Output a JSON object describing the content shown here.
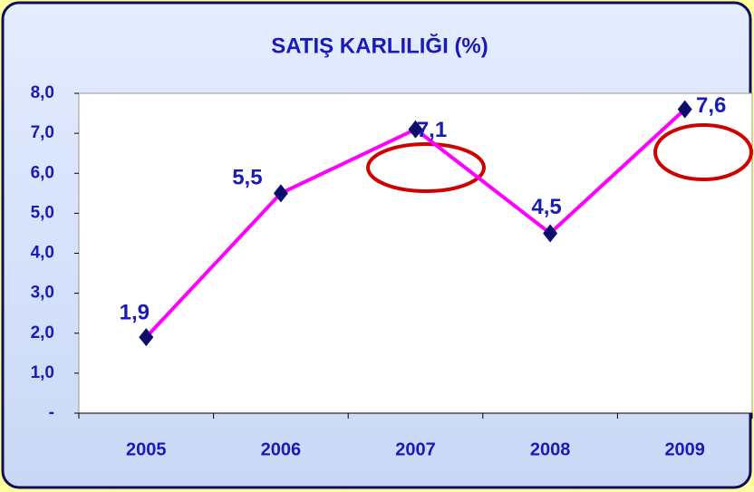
{
  "chart_data": {
    "type": "line",
    "title": "SATIŞ KARLILIĞI (%)",
    "categories": [
      "2005",
      "2006",
      "2007",
      "2008",
      "2009"
    ],
    "values": [
      1.9,
      5.5,
      7.1,
      4.5,
      7.6
    ],
    "value_labels": [
      "1,9",
      "5,5",
      "7,1",
      "4,5",
      "7,6"
    ],
    "color": "#ff00ff",
    "marker_color": "#0d0d6b",
    "ylim": [
      0,
      8
    ],
    "yticks": [
      {
        "value": 0,
        "label": "-"
      },
      {
        "value": 1,
        "label": "1,0"
      },
      {
        "value": 2,
        "label": "2,0"
      },
      {
        "value": 3,
        "label": "3,0"
      },
      {
        "value": 4,
        "label": "4,0"
      },
      {
        "value": 5,
        "label": "5,0"
      },
      {
        "value": 6,
        "label": "6,0"
      },
      {
        "value": 7,
        "label": "7,0"
      },
      {
        "value": 8,
        "label": "8,0"
      }
    ]
  }
}
